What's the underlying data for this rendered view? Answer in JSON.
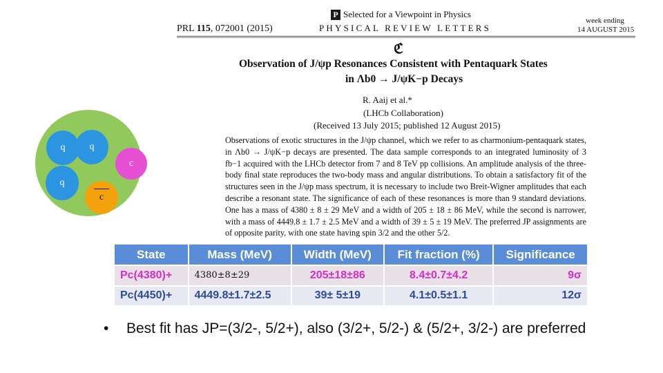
{
  "paper": {
    "ref_prefix": "PRL ",
    "ref_volume": "115",
    "ref_suffix": ", 072001 (2015)",
    "viewpoint_logo": "P",
    "viewpoint_text": "Selected for a Viewpoint in Physics",
    "journal": "PHYSICAL REVIEW LETTERS",
    "week_label": "week ending",
    "date": "14 AUGUST 2015",
    "symbol": "ℭ",
    "title_line1": "Observation of J/ψp Resonances Consistent with Pentaquark States",
    "title_line2": "in Λb0 → J/ψK−p Decays",
    "author": "R. Aaij et al.*",
    "collaboration": "(LHCb Collaboration)",
    "received": "(Received 13 July 2015; published 12 August 2015)",
    "abstract": "Observations of exotic structures in the J/ψp channel, which we refer to as charmonium-pentaquark states, in Λb0 → J/ψK−p decays are presented. The data sample corresponds to an integrated luminosity of 3 fb−1 acquired with the LHCb detector from 7 and 8 TeV pp collisions. An amplitude analysis of the three-body final state reproduces the two-body mass and angular distributions. To obtain a satisfactory fit of the structures seen in the J/ψp mass spectrum, it is necessary to include two Breit-Wigner amplitudes that each describe a resonant state. The significance of each of these resonances is more than 9 standard deviations. One has a mass of 4380 ± 8 ± 29 MeV and a width of 205 ± 18 ± 86 MeV, while the second is narrower, with a mass of 4449.8 ± 1.7 ± 2.5 MeV and a width of 39 ± 5 ± 19 MeV. The preferred JP assignments are of opposite parity, with one state having spin 3/2 and the other 5/2."
  },
  "diagram": {
    "quark1": "q",
    "quark2": "q",
    "quark3": "q",
    "charm": "c",
    "anticharm": "c"
  },
  "table": {
    "headers": [
      "State",
      "Mass (MeV)",
      "Width (MeV)",
      "Fit fraction (%)",
      "Significance"
    ],
    "rows": [
      {
        "state": "Pc(4380)+",
        "mass": "4380±8±29",
        "width": "205±18±86",
        "fit": "8.4±0.7±4.2",
        "sig": "9σ"
      },
      {
        "state": "Pc(4450)+",
        "mass": "4449.8±1.7±2.5",
        "width": "39± 5±19",
        "fit": "4.1±0.5±1.1",
        "sig": "12σ"
      }
    ]
  },
  "bullet": {
    "marker": "•",
    "text": "Best fit has JP=(3/2-, 5/2+), also (3/2+, 5/2-) & (5/2+, 3/2-) are preferred"
  },
  "colors": {
    "pentaquark_bg": "#91c95c",
    "light_quark": "#2b95e2",
    "charm_quark": "#e64fd2",
    "anticharm_quark": "#f4a20c",
    "table_header": "#5a8dd8",
    "state1_text": "#d32fc8",
    "state2_text": "#2e4a9a"
  }
}
